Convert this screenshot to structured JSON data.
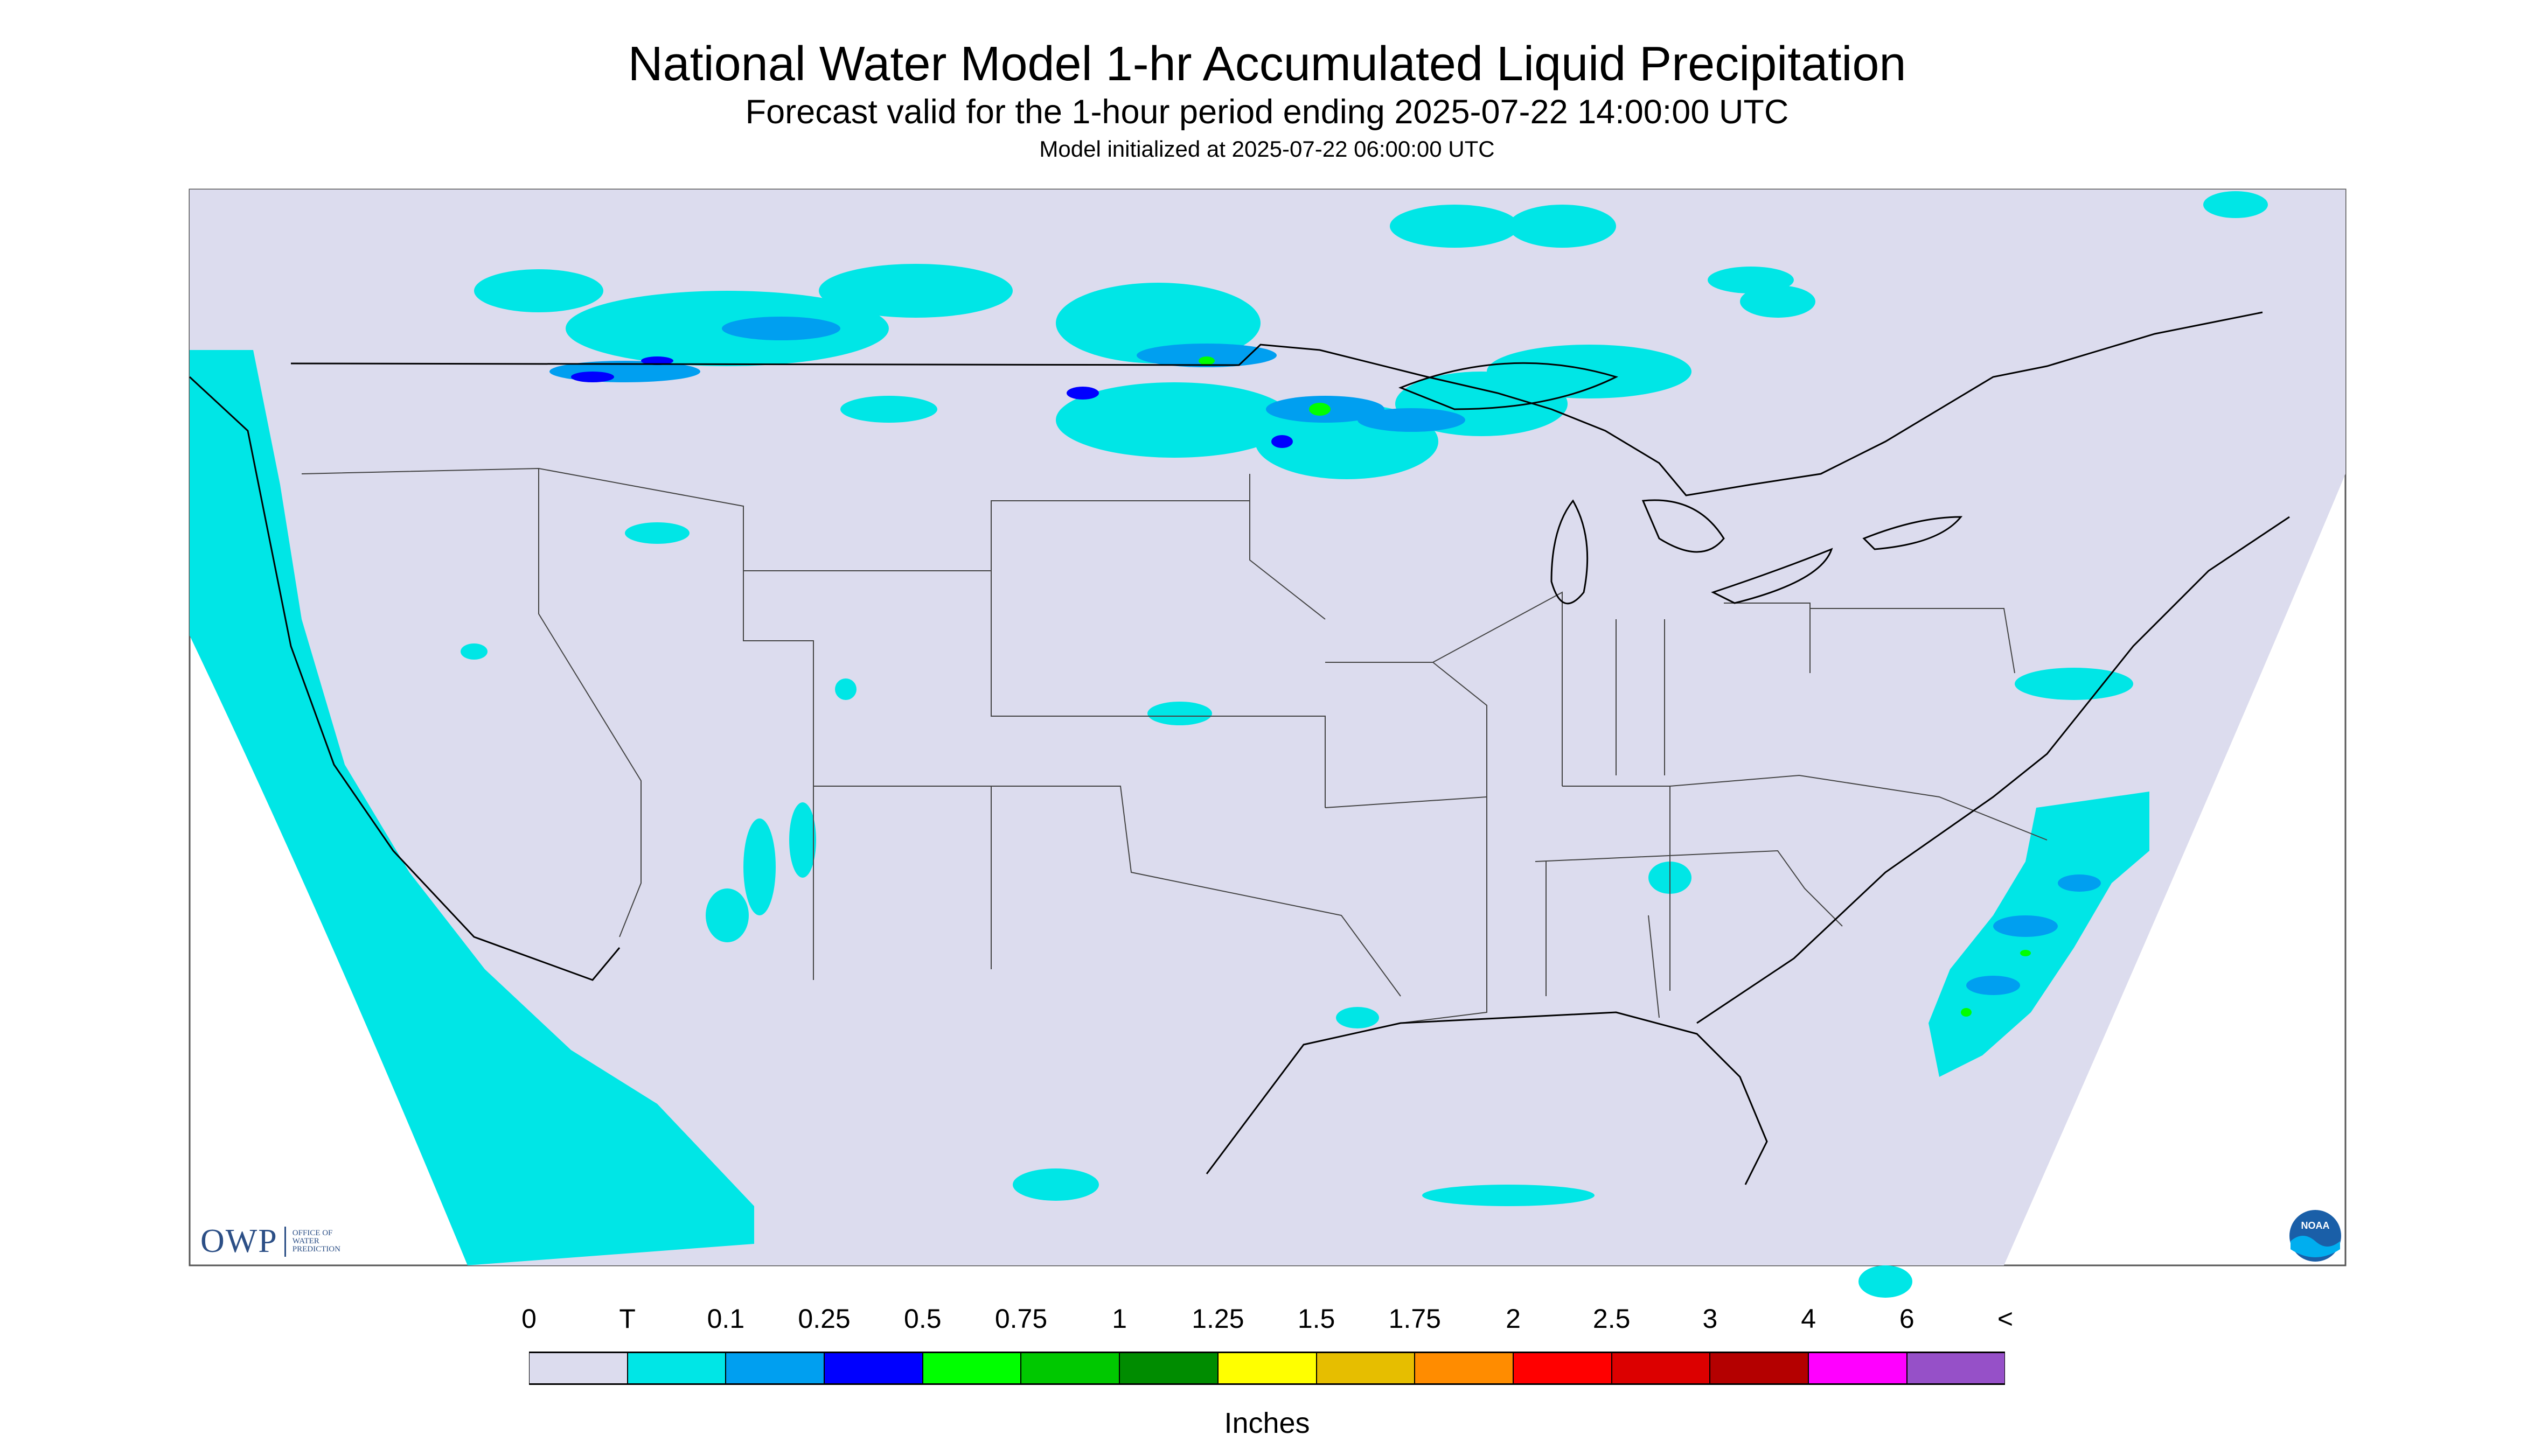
{
  "header": {
    "title": "National Water Model 1-hr Accumulated Liquid Precipitation",
    "subtitle": "Forecast valid for the 1-hour period ending 2025-07-22 14:00:00 UTC",
    "init_line": "Model initialized at 2025-07-22 06:00:00 UTC"
  },
  "legend": {
    "labels": [
      "0",
      "T",
      "0.1",
      "0.25",
      "0.5",
      "0.75",
      "1",
      "1.25",
      "1.5",
      "1.75",
      "2",
      "2.5",
      "3",
      "4",
      "6",
      "<"
    ],
    "colors": [
      "#dcdcee",
      "#00e6e6",
      "#009ff0",
      "#0000ff",
      "#00ff00",
      "#00c800",
      "#008c00",
      "#ffff00",
      "#e6be00",
      "#ff8c00",
      "#ff0000",
      "#dc0000",
      "#b40000",
      "#ff00ff",
      "#9650c8"
    ],
    "units": "Inches"
  },
  "map": {
    "domain_color": "#dcdcee",
    "precip_light_color": "#00e6e6",
    "precip_med_color": "#009ff0",
    "precip_heavy_color": "#0000ff",
    "precip_green_color": "#00ff00",
    "border_color": "#000000"
  },
  "logos": {
    "owp_text": "OWP",
    "owp_subtext": [
      "OFFICE OF",
      "WATER",
      "PREDICTION"
    ],
    "noaa_text": "NOAA"
  }
}
